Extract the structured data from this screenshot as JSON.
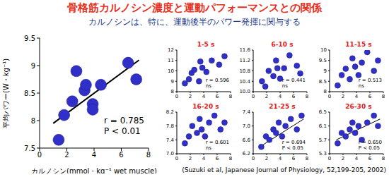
{
  "title": "骨格筋カルノシン濃度と運動パフォーマンスとの関係",
  "subtitle": "カルノシンは、特に、運動後半のパワー発揮に関与する",
  "source": "(Suzuki et al, Japanese Journal of Physiology, 52,199-205, 2002)",
  "chart_data": [
    {
      "type": "scatter",
      "x_label": "カルノシン(mmol・kg⁻¹ wet muscle)",
      "y_label": "平均パワー(W・kg⁻¹)",
      "x": [
        1.4,
        1.8,
        2.4,
        2.7,
        3.3,
        3.4,
        3.9,
        3.9,
        4.5,
        6.5,
        7.1
      ],
      "values": [
        7.65,
        8.1,
        8.35,
        8.9,
        8.55,
        8.65,
        8.3,
        8.2,
        8.65,
        9.05,
        8.75
      ],
      "xlim": [
        0,
        8
      ],
      "xticks": [
        0,
        2,
        4,
        6,
        8
      ],
      "ylim": [
        7.5,
        9.5
      ],
      "yticks": [
        7.5,
        8,
        8.5,
        9,
        9.5
      ],
      "annotations": [
        "r = 0.785",
        "P < 0.01"
      ],
      "color": "#3030c8",
      "fit": {
        "x": [
          1,
          7.3
        ],
        "y": [
          7.95,
          9.1
        ]
      }
    },
    {
      "type": "scatter",
      "title": "1-5 s",
      "x": [
        1.2,
        1.8,
        2.2,
        2.6,
        3.3,
        3.5,
        3.8,
        4.4,
        5.2,
        6.3,
        7.1
      ],
      "values": [
        8.8,
        9.2,
        9.8,
        10.1,
        9.0,
        10.9,
        10.3,
        9.9,
        11.0,
        10.6,
        11.4
      ],
      "xlim": [
        0,
        8
      ],
      "xticks": [
        0,
        2,
        4,
        6,
        8
      ],
      "ylim": [
        8,
        12
      ],
      "yticks": [
        8,
        9,
        10,
        11,
        12
      ],
      "annotations": [
        "r = 0.596",
        "ns"
      ],
      "color": "#3030c8"
    },
    {
      "type": "scatter",
      "title": "6-10 s",
      "x": [
        1.3,
        1.8,
        2.3,
        3.0,
        3.4,
        3.6,
        4.0,
        4.6,
        5.4,
        6.5,
        7.0
      ],
      "values": [
        10.4,
        10.2,
        10.8,
        10.6,
        11.2,
        10.9,
        10.5,
        10.9,
        11.4,
        11.0,
        10.7
      ],
      "xlim": [
        0,
        8
      ],
      "xticks": [
        0,
        2,
        4,
        6,
        8
      ],
      "ylim": [
        10,
        11.6
      ],
      "yticks": [
        {
          "value": 10,
          "label": "10.0"
        },
        10.4,
        10.8,
        11.2,
        11.6
      ],
      "annotations": [
        "r = 0.441",
        "ns"
      ],
      "color": "#3030c8"
    },
    {
      "type": "scatter",
      "title": "11-15 s",
      "x": [
        1.2,
        1.8,
        2.4,
        3.0,
        3.4,
        3.8,
        4.3,
        4.8,
        5.6,
        6.6,
        7.2
      ],
      "values": [
        8.3,
        8.8,
        9.1,
        8.6,
        9.6,
        9.2,
        8.8,
        9.4,
        9.9,
        9.0,
        9.5
      ],
      "xlim": [
        0,
        8
      ],
      "xticks": [
        0,
        2,
        4,
        6,
        8
      ],
      "ylim": [
        8,
        10
      ],
      "yticks": [
        8,
        8.5,
        9,
        9.5,
        10
      ],
      "annotations": [
        "r = 0.513",
        "ns"
      ],
      "color": "#3030c8"
    },
    {
      "type": "scatter",
      "title": "16-20 s",
      "x": [
        1.2,
        1.8,
        2.3,
        3.0,
        3.4,
        3.7,
        4.2,
        4.8,
        5.6,
        6.5,
        7.1
      ],
      "values": [
        7.3,
        7.5,
        7.8,
        7.6,
        8.0,
        7.7,
        7.5,
        7.9,
        8.1,
        7.7,
        7.9
      ],
      "xlim": [
        0,
        8
      ],
      "xticks": [
        0,
        2,
        4,
        6,
        8
      ],
      "ylim": [
        7,
        8.2
      ],
      "yticks": [
        {
          "value": 7,
          "label": "7.0"
        },
        7.4,
        7.8,
        8.2
      ],
      "annotations": [
        "r = 0.601",
        "ns"
      ],
      "color": "#3030c8"
    },
    {
      "type": "scatter",
      "title": "21-25 s",
      "x": [
        1.2,
        1.9,
        2.4,
        3.0,
        3.4,
        3.8,
        4.3,
        4.8,
        5.6,
        6.5,
        7.2
      ],
      "values": [
        6.4,
        6.7,
        6.6,
        6.9,
        6.8,
        7.1,
        6.7,
        7.0,
        7.2,
        6.9,
        7.3
      ],
      "xlim": [
        0,
        8
      ],
      "xticks": [
        0,
        2,
        4,
        6,
        8
      ],
      "ylim": [
        6.2,
        7.4
      ],
      "yticks": [
        6.2,
        6.6,
        {
          "value": 7,
          "label": "7.0"
        },
        7.4
      ],
      "annotations": [
        "r = 0.694",
        "P < 0.05"
      ],
      "color": "#3030c8",
      "fit": {
        "x": [
          1,
          7.5
        ],
        "y": [
          6.4,
          7.2
        ]
      }
    },
    {
      "type": "scatter",
      "title": "26-30 s",
      "x": [
        1.2,
        1.8,
        2.4,
        3.0,
        3.4,
        3.8,
        4.3,
        4.8,
        5.6,
        6.6,
        7.2
      ],
      "values": [
        5.6,
        5.9,
        5.8,
        6.0,
        6.2,
        5.9,
        6.1,
        5.7,
        6.2,
        6.4,
        6.1
      ],
      "xlim": [
        0,
        8
      ],
      "xticks": [
        0,
        2,
        4,
        6,
        8
      ],
      "ylim": [
        5.3,
        6.5
      ],
      "yticks": [
        5.3,
        5.7,
        6.1,
        6.5
      ],
      "annotations": [
        "r = 0.650",
        "P < 0.05"
      ],
      "color": "#3030c8",
      "fit": {
        "x": [
          1,
          7.5
        ],
        "y": [
          5.7,
          6.3
        ]
      }
    }
  ]
}
